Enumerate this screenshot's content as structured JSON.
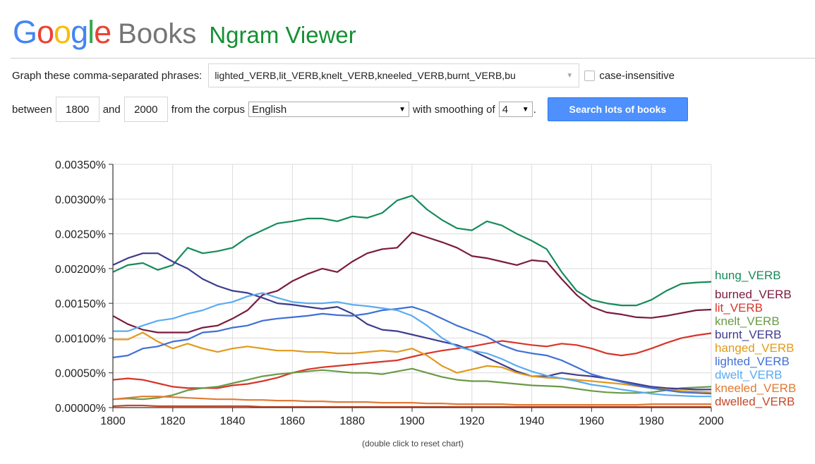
{
  "header": {
    "logo_letters": [
      "G",
      "o",
      "o",
      "g",
      "l",
      "e"
    ],
    "books": "Books",
    "app_title": "Ngram Viewer"
  },
  "query": {
    "phrases_label": "Graph these comma-separated phrases:",
    "phrases_value": "lighted_VERB,lit_VERB,knelt_VERB,kneeled_VERB,burnt_VERB,bu",
    "case_label": "case-insensitive",
    "case_checked": false,
    "between_label": "between",
    "start_year": "1800",
    "and_label": "and",
    "end_year": "2000",
    "corpus_label": "from the corpus",
    "corpus_value": "English",
    "smoothing_label": "with smoothing of",
    "smoothing_value": "4",
    "period": ".",
    "search_button": "Search lots of books"
  },
  "chart_note": "(double click to reset chart)",
  "chart_data": {
    "type": "line",
    "x": [
      1800,
      1805,
      1810,
      1815,
      1820,
      1825,
      1830,
      1835,
      1840,
      1845,
      1850,
      1855,
      1860,
      1865,
      1870,
      1875,
      1880,
      1885,
      1890,
      1895,
      1900,
      1905,
      1910,
      1915,
      1920,
      1925,
      1930,
      1935,
      1940,
      1945,
      1950,
      1955,
      1960,
      1965,
      1970,
      1975,
      1980,
      1985,
      1990,
      1995,
      2000
    ],
    "xlim": [
      1800,
      2000
    ],
    "ylim": [
      0,
      0.0035
    ],
    "y_ticks": [
      "0.00000%",
      "0.00050%",
      "0.00100%",
      "0.00150%",
      "0.00200%",
      "0.00250%",
      "0.00300%",
      "0.00350%"
    ],
    "x_ticks": [
      "1800",
      "1820",
      "1840",
      "1860",
      "1880",
      "1900",
      "1920",
      "1940",
      "1960",
      "1980",
      "2000"
    ],
    "grid": true,
    "legend_position": "right",
    "series": [
      {
        "name": "hung_VERB",
        "color": "#168b5b",
        "values": [
          0.00195,
          0.00205,
          0.00208,
          0.00198,
          0.00205,
          0.0023,
          0.00222,
          0.00225,
          0.0023,
          0.00245,
          0.00255,
          0.00265,
          0.00268,
          0.00272,
          0.00272,
          0.00268,
          0.00275,
          0.00273,
          0.0028,
          0.00298,
          0.00305,
          0.00285,
          0.0027,
          0.00258,
          0.00255,
          0.00268,
          0.00262,
          0.0025,
          0.0024,
          0.00228,
          0.00195,
          0.00168,
          0.00155,
          0.0015,
          0.00147,
          0.00147,
          0.00155,
          0.00168,
          0.00178,
          0.0018,
          0.00181
        ]
      },
      {
        "name": "burned_VERB",
        "color": "#7b1a3f",
        "values": [
          0.00132,
          0.0012,
          0.00112,
          0.00108,
          0.00108,
          0.00108,
          0.00115,
          0.00118,
          0.00128,
          0.0014,
          0.00162,
          0.00168,
          0.00182,
          0.00192,
          0.002,
          0.00195,
          0.0021,
          0.00222,
          0.00228,
          0.0023,
          0.00252,
          0.00245,
          0.00238,
          0.0023,
          0.00218,
          0.00215,
          0.0021,
          0.00205,
          0.00212,
          0.0021,
          0.00185,
          0.00162,
          0.00145,
          0.00137,
          0.00134,
          0.0013,
          0.00129,
          0.00132,
          0.00136,
          0.0014,
          0.00141
        ]
      },
      {
        "name": "lit_VERB",
        "color": "#d7352a",
        "values": [
          0.0004,
          0.00042,
          0.0004,
          0.00035,
          0.0003,
          0.00028,
          0.00028,
          0.00028,
          0.00032,
          0.00034,
          0.00038,
          0.00043,
          0.0005,
          0.00055,
          0.00058,
          0.0006,
          0.00062,
          0.00064,
          0.00066,
          0.00068,
          0.00073,
          0.00078,
          0.00082,
          0.00085,
          0.00088,
          0.00092,
          0.00096,
          0.00093,
          0.0009,
          0.00088,
          0.00092,
          0.0009,
          0.00085,
          0.00078,
          0.00075,
          0.00078,
          0.00085,
          0.00093,
          0.001,
          0.00104,
          0.00107
        ]
      },
      {
        "name": "knelt_VERB",
        "color": "#6a9a48",
        "values": [
          0.00012,
          0.00013,
          0.00012,
          0.00014,
          0.00018,
          0.00025,
          0.00028,
          0.0003,
          0.00035,
          0.0004,
          0.00045,
          0.00048,
          0.0005,
          0.00052,
          0.00054,
          0.00052,
          0.0005,
          0.0005,
          0.00048,
          0.00052,
          0.00056,
          0.0005,
          0.00044,
          0.0004,
          0.00038,
          0.00038,
          0.00036,
          0.00034,
          0.00032,
          0.00031,
          0.0003,
          0.00027,
          0.00024,
          0.00022,
          0.00021,
          0.00021,
          0.00022,
          0.00025,
          0.00028,
          0.00029,
          0.0003
        ]
      },
      {
        "name": "burnt_VERB",
        "color": "#3e3c8f",
        "values": [
          0.00205,
          0.00215,
          0.00222,
          0.00222,
          0.0021,
          0.002,
          0.00185,
          0.00175,
          0.00168,
          0.00165,
          0.00158,
          0.0015,
          0.00148,
          0.00145,
          0.00142,
          0.00145,
          0.00135,
          0.0012,
          0.00112,
          0.0011,
          0.00105,
          0.001,
          0.00095,
          0.0009,
          0.00082,
          0.00072,
          0.00062,
          0.00052,
          0.00045,
          0.00045,
          0.0005,
          0.00047,
          0.00045,
          0.00042,
          0.00038,
          0.00034,
          0.0003,
          0.00028,
          0.00027,
          0.00026,
          0.00026
        ]
      },
      {
        "name": "hanged_VERB",
        "color": "#e19a1c",
        "values": [
          0.00098,
          0.00098,
          0.00108,
          0.00095,
          0.00085,
          0.00092,
          0.00085,
          0.0008,
          0.00085,
          0.00088,
          0.00085,
          0.00082,
          0.00082,
          0.0008,
          0.0008,
          0.00078,
          0.00078,
          0.0008,
          0.00082,
          0.0008,
          0.00085,
          0.00075,
          0.0006,
          0.0005,
          0.00055,
          0.0006,
          0.00058,
          0.0005,
          0.00045,
          0.00043,
          0.00042,
          0.0004,
          0.00038,
          0.00036,
          0.00034,
          0.00031,
          0.00028,
          0.00026,
          0.00024,
          0.00023,
          0.00022
        ]
      },
      {
        "name": "lighted_VERB",
        "color": "#4070d6",
        "values": [
          0.00072,
          0.00075,
          0.00085,
          0.00088,
          0.00095,
          0.00098,
          0.00108,
          0.0011,
          0.00115,
          0.00118,
          0.00125,
          0.00128,
          0.0013,
          0.00132,
          0.00135,
          0.00133,
          0.00132,
          0.00135,
          0.0014,
          0.00142,
          0.00145,
          0.00138,
          0.00128,
          0.00118,
          0.0011,
          0.00102,
          0.0009,
          0.00082,
          0.00078,
          0.00075,
          0.00068,
          0.00058,
          0.00048,
          0.00042,
          0.00037,
          0.00032,
          0.00028,
          0.00025,
          0.00022,
          0.00021,
          0.0002
        ]
      },
      {
        "name": "dwelt_VERB",
        "color": "#5aabf2",
        "values": [
          0.0011,
          0.0011,
          0.00118,
          0.00125,
          0.00128,
          0.00135,
          0.0014,
          0.00148,
          0.00152,
          0.0016,
          0.00165,
          0.00158,
          0.00152,
          0.0015,
          0.0015,
          0.00152,
          0.00148,
          0.00146,
          0.00143,
          0.0014,
          0.00132,
          0.00118,
          0.001,
          0.00088,
          0.00082,
          0.00078,
          0.0007,
          0.0006,
          0.00052,
          0.00046,
          0.00042,
          0.00038,
          0.00033,
          0.0003,
          0.00026,
          0.00023,
          0.0002,
          0.00018,
          0.00017,
          0.00016,
          0.00016
        ]
      },
      {
        "name": "kneeled_VERB",
        "color": "#e07a35",
        "values": [
          0.00012,
          0.00014,
          0.00016,
          0.00016,
          0.00015,
          0.00014,
          0.00013,
          0.00012,
          0.00012,
          0.00011,
          0.00011,
          0.0001,
          0.0001,
          9e-05,
          9e-05,
          8e-05,
          8e-05,
          8e-05,
          7e-05,
          7e-05,
          7e-05,
          6e-05,
          6e-05,
          5e-05,
          5e-05,
          5e-05,
          5e-05,
          4e-05,
          4e-05,
          4e-05,
          4e-05,
          4e-05,
          4e-05,
          4e-05,
          4e-05,
          4e-05,
          5e-05,
          5e-05,
          5e-05,
          5e-05,
          5e-05
        ]
      },
      {
        "name": "dwelled_VERB",
        "color": "#c44a2a",
        "values": [
          2e-05,
          3e-05,
          3e-05,
          2e-05,
          2e-05,
          2e-05,
          2e-05,
          2e-05,
          2e-05,
          2e-05,
          1e-05,
          1e-05,
          1e-05,
          1e-05,
          1e-05,
          1e-05,
          1e-05,
          1e-05,
          1e-05,
          1e-05,
          1e-05,
          1e-05,
          1e-05,
          1e-05,
          1e-05,
          1e-05,
          1e-05,
          1e-05,
          1e-05,
          1e-05,
          1e-05,
          1e-05,
          1e-05,
          1e-05,
          1e-05,
          1e-05,
          1e-05,
          1e-05,
          1e-05,
          1e-05,
          1e-05
        ]
      }
    ]
  }
}
